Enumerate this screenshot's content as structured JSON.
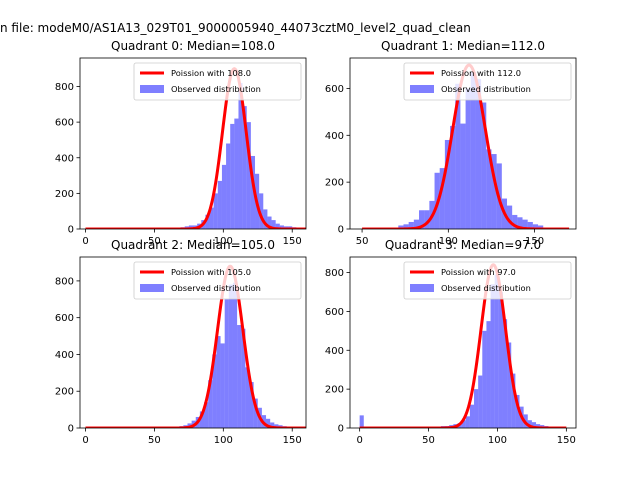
{
  "suptitle": "n file: modeM0/AS1A13_029T01_9000005940_44073cztM0_level2_quad_clean",
  "colors": {
    "poisson": "#ff0000",
    "observed": "#0000ff",
    "observed_alpha": 0.5
  },
  "chart_data": [
    {
      "type": "bar",
      "title": "Quadrant 0: Median=108.0",
      "legend": [
        "Poission with 108.0",
        "Observed distribution"
      ],
      "legend_position": "upper-right",
      "xlim": [
        -4,
        160
      ],
      "ylim": [
        0,
        960
      ],
      "xticks": [
        0,
        50,
        100,
        150
      ],
      "yticks": [
        0,
        200,
        400,
        600,
        800
      ],
      "bin_width": 3,
      "median": 108,
      "fit_peak": 900,
      "fit_sigma": 8.6,
      "fit_x": [
        0,
        160
      ],
      "bins": [
        [
          66,
          5
        ],
        [
          69,
          10
        ],
        [
          72,
          15
        ],
        [
          75,
          20
        ],
        [
          78,
          20
        ],
        [
          81,
          30
        ],
        [
          84,
          50
        ],
        [
          87,
          80
        ],
        [
          90,
          120
        ],
        [
          93,
          200
        ],
        [
          96,
          270
        ],
        [
          99,
          360
        ],
        [
          102,
          480
        ],
        [
          105,
          590
        ],
        [
          108,
          620
        ],
        [
          111,
          820
        ],
        [
          114,
          690
        ],
        [
          117,
          600
        ],
        [
          120,
          410
        ],
        [
          123,
          310
        ],
        [
          126,
          200
        ],
        [
          129,
          110
        ],
        [
          132,
          70
        ],
        [
          135,
          50
        ],
        [
          138,
          30
        ],
        [
          141,
          20
        ],
        [
          144,
          15
        ],
        [
          147,
          15
        ],
        [
          150,
          10
        ],
        [
          153,
          5
        ]
      ]
    },
    {
      "type": "bar",
      "title": "Quadrant 1: Median=112.0",
      "legend": [
        "Poission with 112.0",
        "Observed distribution"
      ],
      "legend_position": "upper-right",
      "xlim": [
        43,
        174
      ],
      "ylim": [
        0,
        730
      ],
      "xticks": [
        50,
        100,
        150
      ],
      "yticks": [
        0,
        200,
        400,
        600
      ],
      "bin_width": 3,
      "median": 112,
      "fit_peak": 700,
      "fit_sigma": 9.5,
      "fit_x": [
        50,
        170
      ],
      "bins": [
        [
          71,
          15
        ],
        [
          74,
          20
        ],
        [
          77,
          30
        ],
        [
          80,
          40
        ],
        [
          83,
          80
        ],
        [
          86,
          80
        ],
        [
          89,
          120
        ],
        [
          92,
          240
        ],
        [
          95,
          260
        ],
        [
          98,
          380
        ],
        [
          101,
          440
        ],
        [
          104,
          620
        ],
        [
          107,
          450
        ],
        [
          110,
          600
        ],
        [
          113,
          670
        ],
        [
          116,
          640
        ],
        [
          119,
          540
        ],
        [
          122,
          340
        ],
        [
          125,
          320
        ],
        [
          128,
          280
        ],
        [
          131,
          130
        ],
        [
          134,
          100
        ],
        [
          137,
          60
        ],
        [
          140,
          50
        ],
        [
          143,
          40
        ],
        [
          146,
          30
        ],
        [
          149,
          20
        ],
        [
          152,
          15
        ]
      ]
    },
    {
      "type": "bar",
      "title": "Quadrant 2: Median=105.0",
      "legend": [
        "Poission with 105.0",
        "Observed distribution"
      ],
      "legend_position": "upper-right",
      "xlim": [
        -4,
        160
      ],
      "ylim": [
        0,
        930
      ],
      "xticks": [
        0,
        50,
        100,
        150
      ],
      "yticks": [
        0,
        200,
        400,
        600,
        800
      ],
      "bin_width": 3,
      "median": 105,
      "fit_peak": 880,
      "fit_sigma": 9.2,
      "fit_x": [
        0,
        160
      ],
      "bins": [
        [
          65,
          5
        ],
        [
          68,
          10
        ],
        [
          71,
          15
        ],
        [
          74,
          25
        ],
        [
          77,
          40
        ],
        [
          80,
          60
        ],
        [
          83,
          90
        ],
        [
          86,
          140
        ],
        [
          89,
          260
        ],
        [
          92,
          400
        ],
        [
          95,
          500
        ],
        [
          98,
          460
        ],
        [
          101,
          700
        ],
        [
          104,
          780
        ],
        [
          107,
          790
        ],
        [
          110,
          560
        ],
        [
          113,
          540
        ],
        [
          116,
          330
        ],
        [
          119,
          250
        ],
        [
          122,
          160
        ],
        [
          125,
          110
        ],
        [
          128,
          70
        ],
        [
          131,
          50
        ],
        [
          134,
          30
        ],
        [
          137,
          20
        ],
        [
          140,
          15
        ],
        [
          143,
          10
        ],
        [
          146,
          5
        ]
      ]
    },
    {
      "type": "bar",
      "title": "Quadrant 3: Median=97.0",
      "legend": [
        "Poission with 97.0",
        "Observed distribution"
      ],
      "legend_position": "upper-right",
      "xlim": [
        -7,
        157
      ],
      "ylim": [
        0,
        880
      ],
      "xticks": [
        0,
        50,
        100,
        150
      ],
      "yticks": [
        0,
        200,
        400,
        600,
        800
      ],
      "bin_width": 3,
      "median": 97,
      "fit_peak": 840,
      "fit_sigma": 8.9,
      "fit_x": [
        0,
        150
      ],
      "bins": [
        [
          0,
          65
        ],
        [
          56,
          5
        ],
        [
          59,
          10
        ],
        [
          62,
          10
        ],
        [
          65,
          15
        ],
        [
          68,
          20
        ],
        [
          71,
          25
        ],
        [
          74,
          40
        ],
        [
          77,
          60
        ],
        [
          80,
          120
        ],
        [
          83,
          200
        ],
        [
          86,
          270
        ],
        [
          89,
          500
        ],
        [
          92,
          550
        ],
        [
          95,
          740
        ],
        [
          98,
          790
        ],
        [
          101,
          700
        ],
        [
          104,
          560
        ],
        [
          107,
          440
        ],
        [
          110,
          280
        ],
        [
          113,
          170
        ],
        [
          116,
          110
        ],
        [
          119,
          70
        ],
        [
          122,
          40
        ],
        [
          125,
          30
        ],
        [
          128,
          20
        ],
        [
          131,
          15
        ],
        [
          134,
          10
        ],
        [
          137,
          5
        ]
      ]
    }
  ]
}
